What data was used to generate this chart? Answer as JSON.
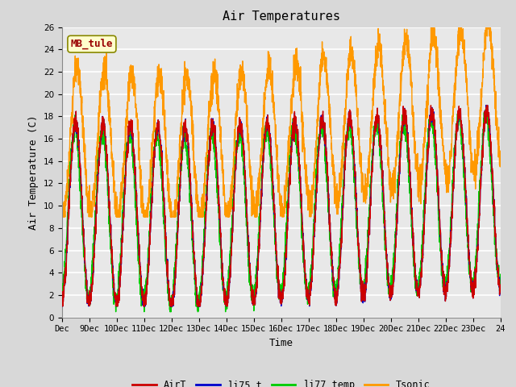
{
  "title": "Air Temperatures",
  "ylabel": "Air Temperature (C)",
  "xlabel": "Time",
  "ylim": [
    0,
    26
  ],
  "xlim": [
    0,
    16
  ],
  "x_tick_labels": [
    "Dec",
    "9Dec",
    "10Dec",
    "11Dec",
    "12Dec",
    "13Dec",
    "14Dec",
    "15Dec",
    "16Dec",
    "17Dec",
    "18Dec",
    "19Dec",
    "20Dec",
    "21Dec",
    "22Dec",
    "23Dec",
    "24"
  ],
  "series_colors": {
    "AirT": "#cc0000",
    "li75_t": "#0000cc",
    "li77_temp": "#00cc00",
    "Tsonic": "#ff9900"
  },
  "annotation_text": "MB_tule",
  "annotation_bg": "#ffffcc",
  "annotation_border": "#888800",
  "annotation_text_color": "#990000",
  "background_color": "#d8d8d8",
  "plot_bg_color": "#e8e8e8",
  "grid_color": "#ffffff",
  "title_fontsize": 11,
  "axis_fontsize": 9,
  "tick_fontsize": 7.5,
  "legend_fontsize": 8.5,
  "line_width": 1.0
}
